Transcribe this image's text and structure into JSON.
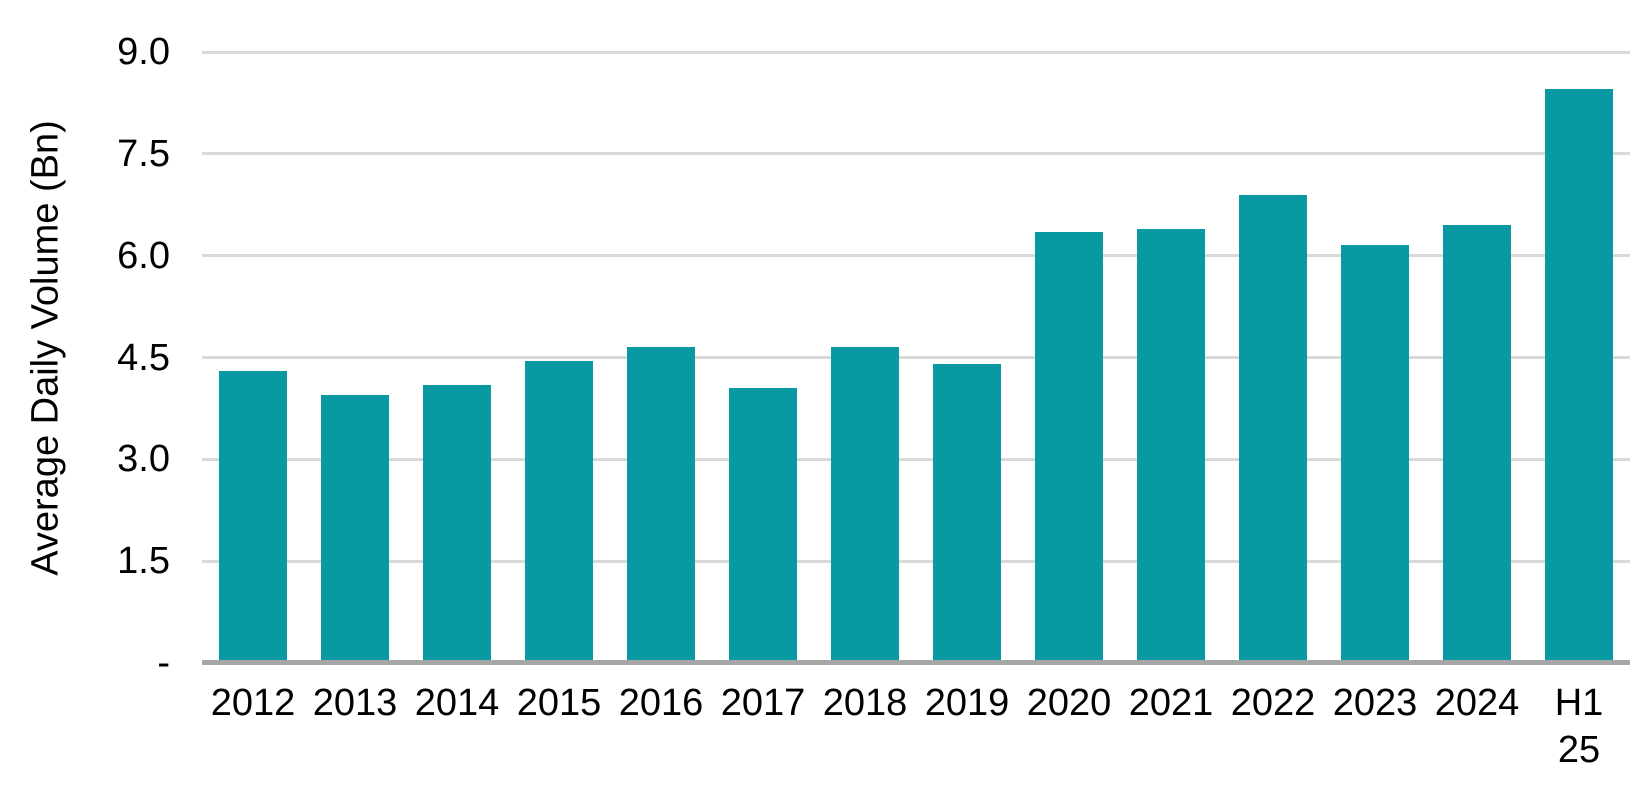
{
  "chart_data": {
    "type": "bar",
    "title": "",
    "xlabel": "",
    "ylabel": "Average Daily Volume (Bn)",
    "categories": [
      "2012",
      "2013",
      "2014",
      "2015",
      "2016",
      "2017",
      "2018",
      "2019",
      "2020",
      "2021",
      "2022",
      "2023",
      "2024",
      "H1 25"
    ],
    "values": [
      4.3,
      3.95,
      4.1,
      4.45,
      4.65,
      4.05,
      4.65,
      4.4,
      6.35,
      6.4,
      6.9,
      6.15,
      6.45,
      8.45
    ],
    "ylim": [
      0,
      9
    ],
    "yticks": [
      {
        "value": 0,
        "label": "-"
      },
      {
        "value": 1.5,
        "label": "1.5"
      },
      {
        "value": 3,
        "label": "3.0"
      },
      {
        "value": 4.5,
        "label": "4.5"
      },
      {
        "value": 6,
        "label": "6.0"
      },
      {
        "value": 7.5,
        "label": "7.5"
      },
      {
        "value": 9,
        "label": "9.0"
      }
    ],
    "grid": "horizontal-only",
    "legend": "none",
    "bar_color": "#0999A2",
    "gridline_color": "#D9D9D9",
    "axis_line_color": "#A6A6A6",
    "text_color": "#000000",
    "background_color": "#FFFFFF"
  }
}
